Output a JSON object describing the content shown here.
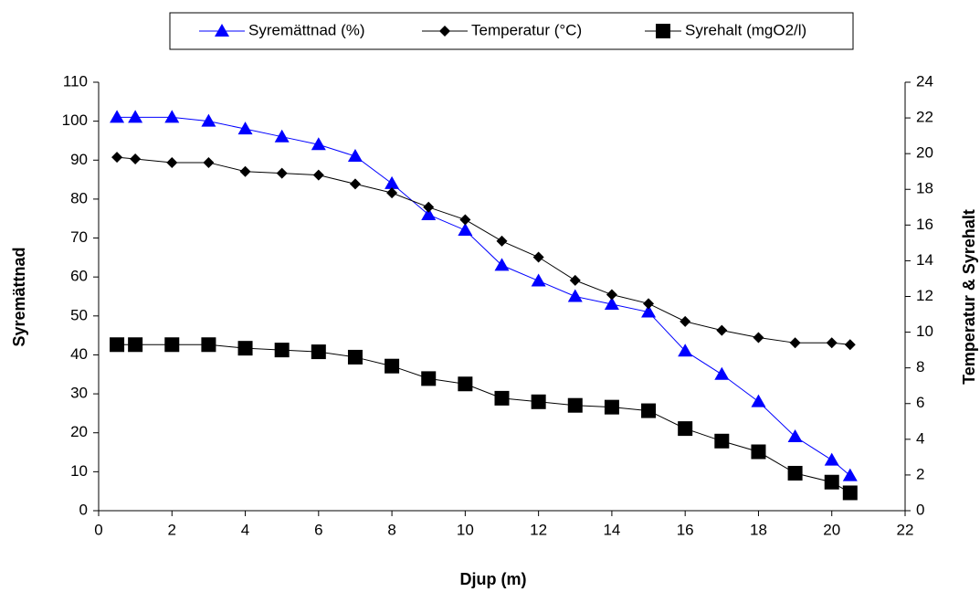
{
  "chart_data": {
    "type": "line",
    "x_label": "Djup (m)",
    "y_label": "Syremättnad",
    "y2_label": "Temperatur & Syrehalt",
    "x": [
      0.5,
      1,
      2,
      3,
      4,
      5,
      6,
      7,
      8,
      9,
      10,
      11,
      12,
      13,
      14,
      15,
      16,
      17,
      18,
      19,
      20,
      20.5
    ],
    "series": [
      {
        "name": "Syremättnad (%)",
        "color": "#0000ff",
        "marker": "triangle",
        "values": [
          101,
          101,
          101,
          100,
          98,
          96,
          94,
          91,
          84,
          76,
          72,
          63,
          59,
          55,
          53,
          51,
          41,
          35,
          28,
          19,
          13,
          9
        ]
      },
      {
        "name": "Temperatur (°C)",
        "color": "#000000",
        "marker": "diamond",
        "axis": "y2",
        "values": [
          19.8,
          19.7,
          19.5,
          19.5,
          19.0,
          18.9,
          18.8,
          18.3,
          17.8,
          17.0,
          16.3,
          15.1,
          14.2,
          12.9,
          12.1,
          11.6,
          10.6,
          10.1,
          9.7,
          9.4,
          9.4,
          9.3
        ]
      },
      {
        "name": "Syrehalt (mgO2/l)",
        "color": "#000000",
        "marker": "square",
        "axis": "y2",
        "values": [
          9.3,
          9.3,
          9.3,
          9.3,
          9.1,
          9.0,
          8.9,
          8.6,
          8.1,
          7.4,
          7.1,
          6.3,
          6.1,
          5.9,
          5.8,
          5.6,
          4.6,
          3.9,
          3.3,
          2.1,
          1.6,
          1.0
        ]
      }
    ],
    "xlim": [
      0,
      22
    ],
    "xticks": [
      0,
      2,
      4,
      6,
      8,
      10,
      12,
      14,
      16,
      18,
      20,
      22
    ],
    "ylim": [
      0,
      110
    ],
    "yticks": [
      0,
      10,
      20,
      30,
      40,
      50,
      60,
      70,
      80,
      90,
      100,
      110
    ],
    "y2lim": [
      0,
      24
    ],
    "y2ticks": [
      0,
      2,
      4,
      6,
      8,
      10,
      12,
      14,
      16,
      18,
      20,
      22,
      24
    ],
    "legend": "top",
    "grid": false
  }
}
